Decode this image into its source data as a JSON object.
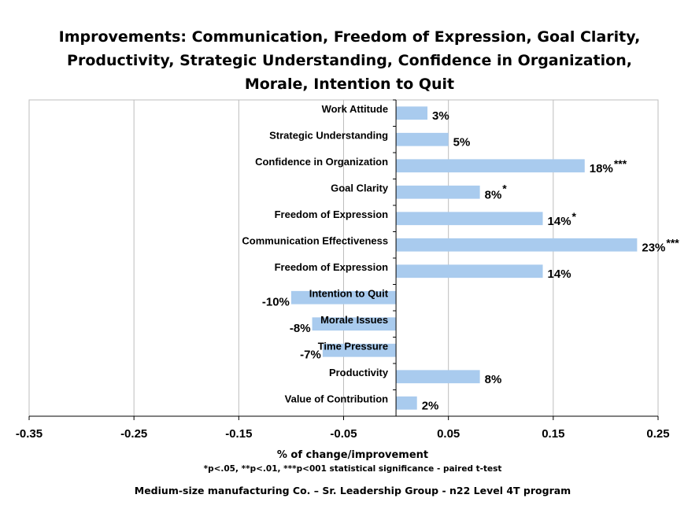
{
  "chart_data": {
    "type": "bar",
    "orientation": "horizontal",
    "title_lines": [
      "Improvements: Communication, Freedom of Expression, Goal Clarity,",
      "Productivity, Strategic Understanding, Confidence in Organization,",
      "Morale, Intention to Quit"
    ],
    "categories": [
      "Work Attitude",
      "Strategic Understanding",
      "Confidence in Organization",
      "Goal Clarity",
      "Freedom of Expression",
      "Communication Effectiveness",
      "Freedom of Expression",
      "Intention to Quit",
      "Morale Issues",
      "Time Pressure",
      "Productivity",
      "Value of Contribution"
    ],
    "values": [
      0.03,
      0.05,
      0.18,
      0.08,
      0.14,
      0.23,
      0.14,
      -0.1,
      -0.08,
      -0.07,
      0.08,
      0.02
    ],
    "data_labels": [
      "3%",
      "5%",
      "18%",
      "8%",
      "14%",
      "23%",
      "14%",
      "-10%",
      "-8%",
      "-7%",
      "8%",
      "2%"
    ],
    "significance": [
      "",
      "",
      "***",
      "*",
      "*",
      "***",
      "",
      "",
      "",
      "",
      "",
      ""
    ],
    "xlim": [
      -0.35,
      0.25
    ],
    "xticks": [
      -0.35,
      -0.25,
      -0.15,
      -0.05,
      0.05,
      0.15,
      0.25
    ],
    "xtick_labels": [
      "-0.35",
      "-0.25",
      "-0.15",
      "-0.05",
      "0.05",
      "0.15",
      "0.25"
    ],
    "xlabel": "% of change/improvement",
    "ylabel": "",
    "grid": "vertical",
    "bar_color": "#a9cbee",
    "grid_color": "#bdbdbd"
  },
  "notes": {
    "significance": "*p<.05, **p<.01, ***p<001 statistical significance - paired t-test",
    "footer": "Medium-size manufacturing Co. – Sr. Leadership Group - n22  Level 4T program"
  }
}
